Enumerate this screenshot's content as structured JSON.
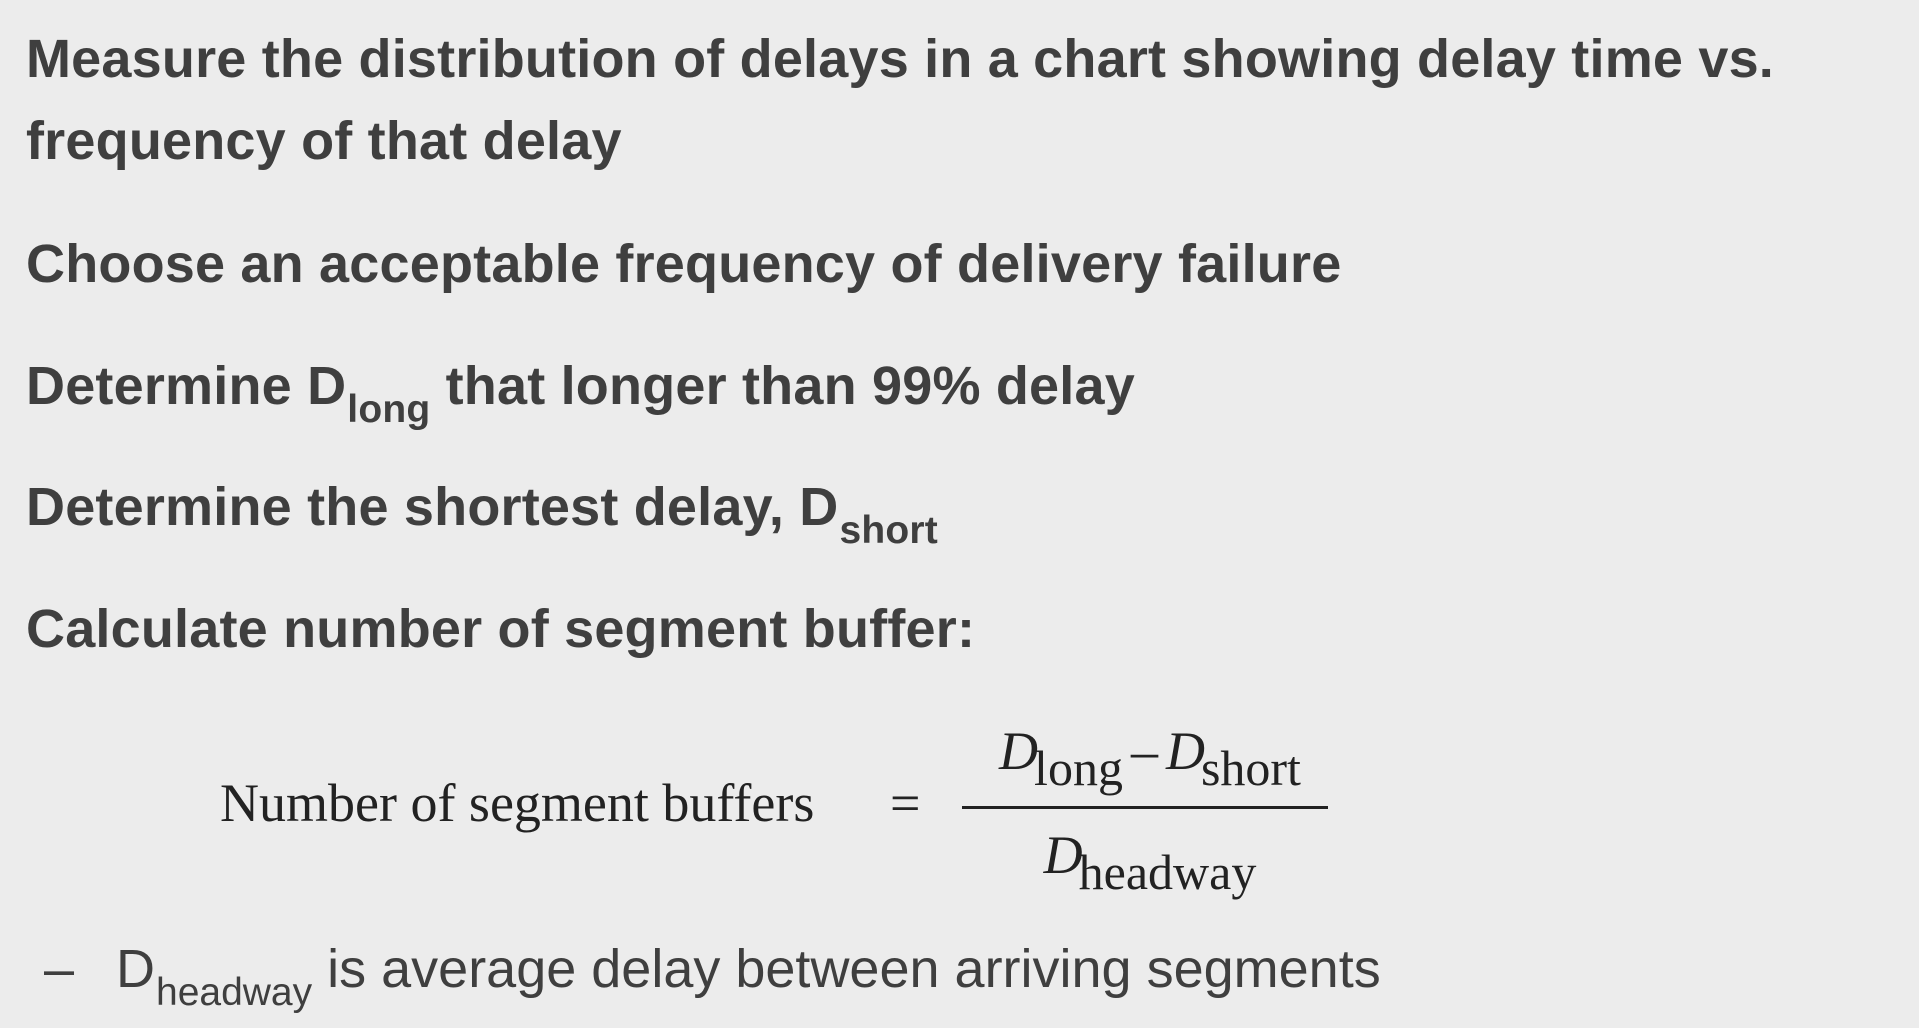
{
  "bullets": {
    "b1_line1": "Measure the distribution of delays in a chart showing delay time vs.",
    "b1_line2": "frequency of that delay",
    "b2": "Choose an acceptable frequency of delivery failure",
    "b3_pre": "Determine D",
    "b3_sub": "long",
    "b3_post": " that longer than 99% delay",
    "b4_pre": "Determine the shortest delay, D",
    "b4_sub": "short",
    "b5": "Calculate number of segment buffer:"
  },
  "formula": {
    "lhs": "Number of segment buffers",
    "equals": "=",
    "num_var1": "D",
    "num_sub1": "long",
    "minus": "–",
    "num_var2": "D",
    "num_sub2": "short",
    "den_var": "D",
    "den_sub": "headway"
  },
  "subbullet": {
    "dash": "–",
    "var": "D",
    "sub": "headway",
    "text": " is average delay between arriving segments"
  }
}
